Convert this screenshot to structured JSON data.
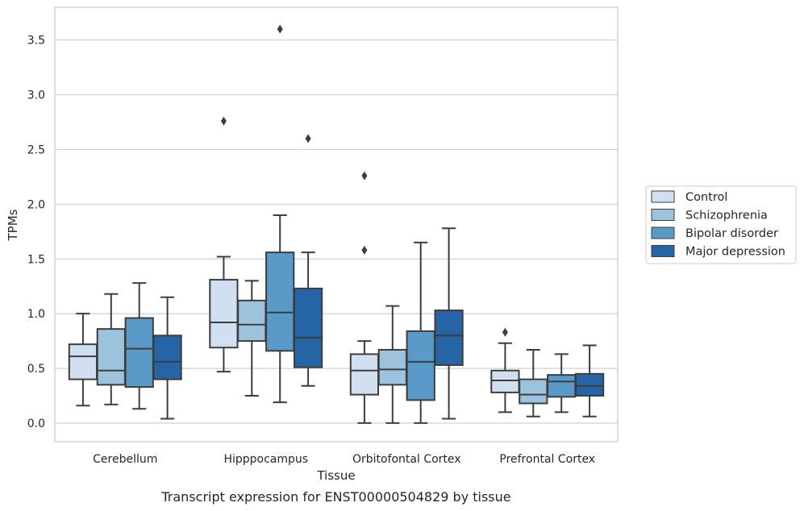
{
  "caption": "Transcript expression for ENST00000504829 by tissue",
  "chart_data": {
    "type": "box",
    "xlabel": "Tissue",
    "ylabel": "TPMs",
    "ylim": [
      -0.17,
      3.8
    ],
    "yticks": [
      "0.0",
      "0.5",
      "1.0",
      "1.5",
      "2.0",
      "2.5",
      "3.0",
      "3.5"
    ],
    "grid": "horizontal",
    "legend_position": "right",
    "categories": [
      "Cerebellum",
      "Hipppocampus",
      "Orbitofontal Cortex",
      "Prefrontal Cortex"
    ],
    "series": [
      {
        "name": "Control",
        "color": "#d0e0f0",
        "boxes": [
          {
            "whislo": 0.16,
            "q1": 0.4,
            "med": 0.61,
            "q3": 0.72,
            "whishi": 1.0,
            "fliers": []
          },
          {
            "whislo": 0.47,
            "q1": 0.69,
            "med": 0.92,
            "q3": 1.31,
            "whishi": 1.52,
            "fliers": [
              2.76
            ]
          },
          {
            "whislo": 0.0,
            "q1": 0.26,
            "med": 0.48,
            "q3": 0.63,
            "whishi": 0.75,
            "fliers": [
              1.58,
              2.26
            ]
          },
          {
            "whislo": 0.1,
            "q1": 0.28,
            "med": 0.39,
            "q3": 0.48,
            "whishi": 0.73,
            "fliers": [
              0.83
            ]
          }
        ]
      },
      {
        "name": "Schizophrenia",
        "color": "#9cc3db",
        "boxes": [
          {
            "whislo": 0.17,
            "q1": 0.35,
            "med": 0.48,
            "q3": 0.86,
            "whishi": 1.18,
            "fliers": []
          },
          {
            "whislo": 0.25,
            "q1": 0.75,
            "med": 0.9,
            "q3": 1.12,
            "whishi": 1.3,
            "fliers": []
          },
          {
            "whislo": 0.0,
            "q1": 0.35,
            "med": 0.49,
            "q3": 0.67,
            "whishi": 1.07,
            "fliers": []
          },
          {
            "whislo": 0.06,
            "q1": 0.18,
            "med": 0.26,
            "q3": 0.4,
            "whishi": 0.67,
            "fliers": []
          }
        ]
      },
      {
        "name": "Bipolar disorder",
        "color": "#5a9ac8",
        "boxes": [
          {
            "whislo": 0.13,
            "q1": 0.33,
            "med": 0.68,
            "q3": 0.96,
            "whishi": 1.28,
            "fliers": []
          },
          {
            "whislo": 0.19,
            "q1": 0.66,
            "med": 1.01,
            "q3": 1.56,
            "whishi": 1.9,
            "fliers": [
              3.6
            ]
          },
          {
            "whislo": 0.0,
            "q1": 0.21,
            "med": 0.56,
            "q3": 0.84,
            "whishi": 1.65,
            "fliers": []
          },
          {
            "whislo": 0.1,
            "q1": 0.24,
            "med": 0.38,
            "q3": 0.44,
            "whishi": 0.63,
            "fliers": []
          }
        ]
      },
      {
        "name": "Major depression",
        "color": "#2565a5",
        "boxes": [
          {
            "whislo": 0.04,
            "q1": 0.4,
            "med": 0.56,
            "q3": 0.8,
            "whishi": 1.15,
            "fliers": []
          },
          {
            "whislo": 0.34,
            "q1": 0.51,
            "med": 0.78,
            "q3": 1.23,
            "whishi": 1.56,
            "fliers": [
              2.6
            ]
          },
          {
            "whislo": 0.04,
            "q1": 0.53,
            "med": 0.8,
            "q3": 1.03,
            "whishi": 1.78,
            "fliers": []
          },
          {
            "whislo": 0.06,
            "q1": 0.25,
            "med": 0.34,
            "q3": 0.45,
            "whishi": 0.71,
            "fliers": []
          }
        ]
      }
    ]
  }
}
